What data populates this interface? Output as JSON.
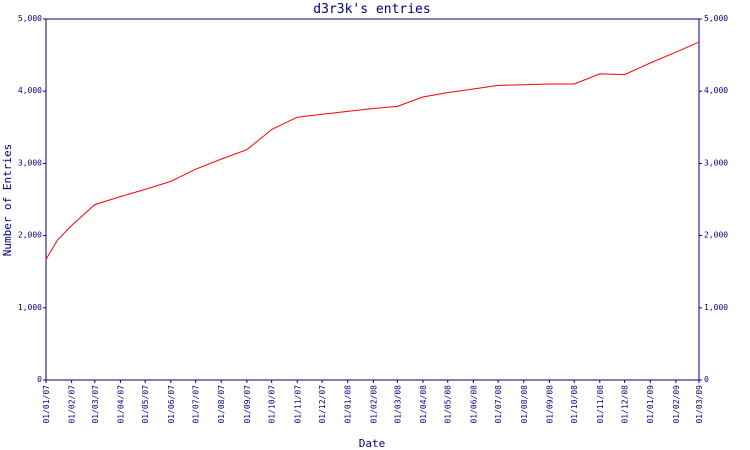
{
  "chart_data": {
    "type": "line",
    "title": "d3r3k's entries",
    "xlabel": "Date",
    "ylabel": "Number of Entries",
    "ylim": [
      0,
      5000
    ],
    "y_ticks": [
      "0",
      "1,000",
      "2,000",
      "3,000",
      "4,000",
      "5,000"
    ],
    "y_tick_values": [
      0,
      1000,
      2000,
      3000,
      4000,
      5000
    ],
    "right_axis_mirrors_left": true,
    "grid": false,
    "x_ticks": [
      "01/01/07",
      "01/02/07",
      "01/03/07",
      "01/04/07",
      "01/05/07",
      "01/06/07",
      "01/07/07",
      "01/08/07",
      "01/09/07",
      "01/10/07",
      "01/11/07",
      "01/12/07",
      "01/01/08",
      "01/02/08",
      "01/03/08",
      "01/04/08",
      "01/05/08",
      "01/06/08",
      "01/07/08",
      "01/08/08",
      "01/09/08",
      "01/10/08",
      "01/11/08",
      "01/12/08",
      "01/01/09",
      "01/02/09",
      "01/03/09"
    ],
    "series": [
      {
        "color": "#ff0000",
        "x": [
          "01/01/07",
          "15/01/07",
          "01/02/07",
          "01/03/07",
          "01/04/07",
          "01/05/07",
          "01/06/07",
          "01/07/07",
          "01/08/07",
          "01/09/07",
          "01/10/07",
          "01/11/07",
          "01/12/07",
          "01/01/08",
          "01/02/08",
          "01/03/08",
          "01/04/08",
          "01/05/08",
          "01/06/08",
          "01/07/08",
          "01/08/08",
          "01/09/08",
          "01/10/08",
          "01/11/08",
          "01/12/08",
          "01/01/09",
          "01/02/09",
          "01/03/09"
        ],
        "values": [
          1670,
          1940,
          2140,
          2430,
          2540,
          2640,
          2750,
          2920,
          3060,
          3190,
          3470,
          3640,
          3680,
          3720,
          3760,
          3790,
          3920,
          3980,
          4030,
          4080,
          4090,
          4100,
          4100,
          4240,
          4230,
          4390,
          4540,
          4680
        ]
      }
    ]
  }
}
